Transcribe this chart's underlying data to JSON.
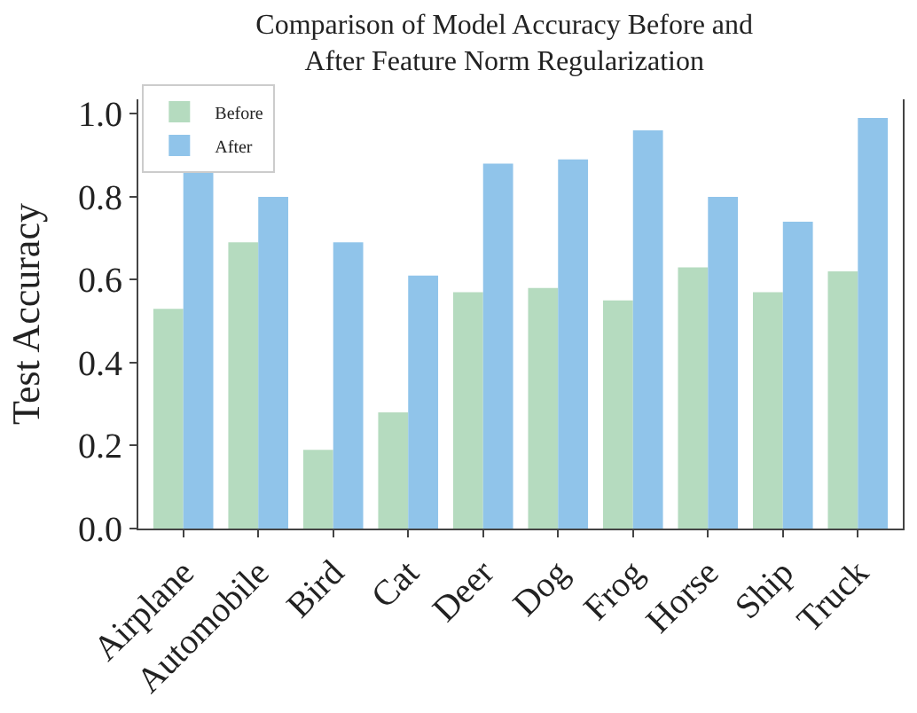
{
  "chart_data": {
    "type": "bar",
    "title": "Comparison of Model Accuracy Before and\nAfter Feature Norm Regularization",
    "ylabel": "Test Accuracy",
    "categories": [
      "Airplane",
      "Automobile",
      "Bird",
      "Cat",
      "Deer",
      "Dog",
      "Frog",
      "Horse",
      "Ship",
      "Truck"
    ],
    "series": [
      {
        "name": "Before",
        "color": "#b5dbbf",
        "values": [
          0.53,
          0.69,
          0.19,
          0.28,
          0.57,
          0.58,
          0.55,
          0.63,
          0.57,
          0.62
        ]
      },
      {
        "name": "After",
        "color": "#90c4ea",
        "values": [
          0.87,
          0.8,
          0.69,
          0.61,
          0.88,
          0.89,
          0.96,
          0.8,
          0.74,
          0.99
        ]
      }
    ],
    "ylim": [
      0,
      1.035
    ],
    "yticks": [
      {
        "value": 0,
        "label": "0.0"
      },
      0.2,
      0.4,
      0.6,
      0.8,
      {
        "value": 1,
        "label": "1.0"
      }
    ],
    "legend": "top left"
  }
}
